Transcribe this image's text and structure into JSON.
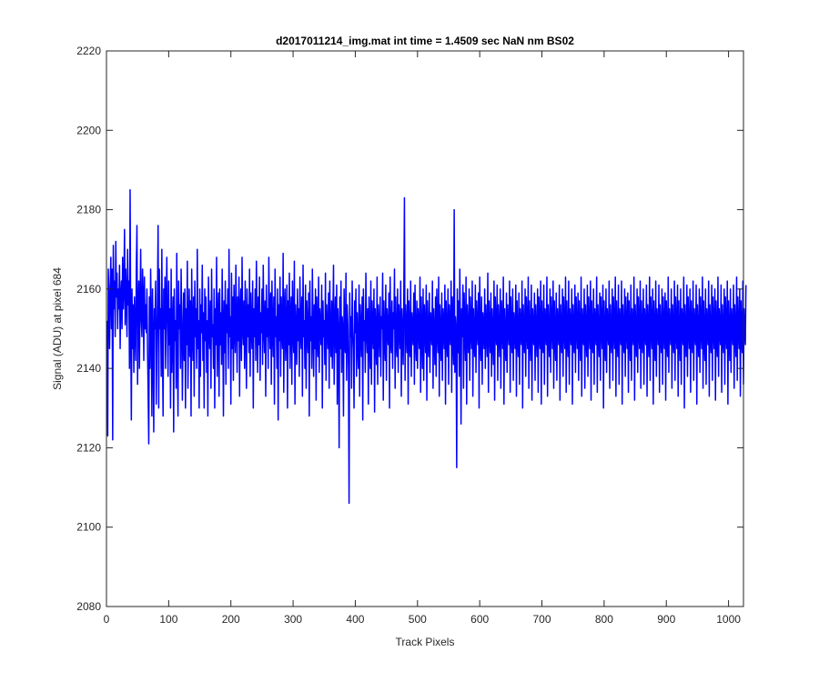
{
  "chart_data": {
    "type": "line",
    "title": "d2017011214_img.mat int time = 1.4509 sec  NaN nm BS02",
    "xlabel": "Track Pixels",
    "ylabel": "Signal (ADU) at pixel 684",
    "xlim": [
      0,
      1024
    ],
    "ylim": [
      2080,
      2220
    ],
    "xticks": [
      0,
      100,
      200,
      300,
      400,
      500,
      600,
      700,
      800,
      900,
      1000
    ],
    "yticks": [
      2080,
      2100,
      2120,
      2140,
      2160,
      2180,
      2200,
      2220
    ],
    "xticklabels": [
      "0",
      "100",
      "200",
      "300",
      "400",
      "500",
      "600",
      "700",
      "800",
      "900",
      "1000"
    ],
    "yticklabels": [
      "2080",
      "2100",
      "2120",
      "2140",
      "2160",
      "2180",
      "2200",
      "2220"
    ],
    "grid": false,
    "line_color": "#0000ff",
    "series": [
      {
        "x_start": 1,
        "x_step": 1,
        "values": [
          2152,
          2123,
          2165,
          2158,
          2145,
          2160,
          2168,
          2150,
          2165,
          2122,
          2171,
          2155,
          2162,
          2148,
          2172,
          2158,
          2164,
          2150,
          2160,
          2155,
          2166,
          2145,
          2158,
          2162,
          2150,
          2168,
          2155,
          2160,
          2175,
          2151,
          2165,
          2158,
          2148,
          2170,
          2156,
          2162,
          2140,
          2185,
          2150,
          2127,
          2160,
          2145,
          2156,
          2139,
          2158,
          2150,
          2142,
          2165,
          2176,
          2136,
          2155,
          2162,
          2140,
          2156,
          2170,
          2152,
          2148,
          2165,
          2158,
          2142,
          2163,
          2150,
          2156,
          2149,
          2160,
          2145,
          2134,
          2121,
          2158,
          2140,
          2165,
          2152,
          2128,
          2160,
          2147,
          2124,
          2155,
          2150,
          2162,
          2131,
          2145,
          2158,
          2176,
          2130,
          2165,
          2150,
          2155,
          2138,
          2170,
          2145,
          2128,
          2160,
          2150,
          2163,
          2140,
          2156,
          2168,
          2151,
          2138,
          2162,
          2146,
          2155,
          2130,
          2165,
          2139,
          2150,
          2158,
          2124,
          2160,
          2147,
          2152,
          2135,
          2169,
          2145,
          2128,
          2162,
          2150,
          2156,
          2140,
          2165,
          2153,
          2132,
          2148,
          2159,
          2142,
          2160,
          2130,
          2155,
          2146,
          2167,
          2135,
          2150,
          2160,
          2143,
          2157,
          2128,
          2165,
          2150,
          2142,
          2158,
          2133,
          2162,
          2148,
          2155,
          2140,
          2170,
          2145,
          2152,
          2130,
          2160,
          2138,
          2156,
          2149,
          2166,
          2142,
          2154,
          2130,
          2160,
          2147,
          2158,
          2139,
          2152,
          2128,
          2163,
          2150,
          2145,
          2157,
          2135,
          2165,
          2148,
          2151,
          2140,
          2160,
          2130,
          2155,
          2146,
          2168,
          2138,
          2152,
          2159,
          2133,
          2160,
          2146,
          2154,
          2141,
          2165,
          2150,
          2128,
          2157,
          2144,
          2162,
          2136,
          2156,
          2149,
          2160,
          2140,
          2170,
          2148,
          2153,
          2131,
          2164,
          2145,
          2158,
          2137,
          2161,
          2150,
          2144,
          2166,
          2152,
          2139,
          2158,
          2147,
          2163,
          2133,
          2155,
          2160,
          2142,
          2168,
          2150,
          2146,
          2157,
          2140,
          2162,
          2151,
          2135,
          2160,
          2148,
          2156,
          2144,
          2165,
          2138,
          2159,
          2150,
          2145,
          2162,
          2130,
          2155,
          2148,
          2160,
          2142,
          2167,
          2151,
          2139,
          2158,
          2146,
          2163,
          2137,
          2154,
          2149,
          2160,
          2141,
          2166,
          2150,
          2144,
          2157,
          2133,
          2161,
          2148,
          2155,
          2140,
          2168,
          2152,
          2145,
          2159,
          2136,
          2162,
          2150,
          2143,
          2158,
          2131,
          2165,
          2148,
          2153,
          2140,
          2160,
          2127,
          2156,
          2147,
          2163,
          2138,
          2158,
          2150,
          2145,
          2169,
          2134,
          2155,
          2160,
          2142,
          2150,
          2161,
          2130,
          2157,
          2146,
          2164,
          2140,
          2153,
          2158,
          2136,
          2162,
          2149,
          2144,
          2167,
          2131,
          2156,
          2150,
          2141,
          2160,
          2147,
          2155,
          2138,
          2163,
          2150,
          2145,
          2158,
          2133,
          2166,
          2148,
          2152,
          2140,
          2161,
          2135,
          2157,
          2150,
          2144,
          2159,
          2128,
          2162,
          2147,
          2153,
          2140,
          2165,
          2150,
          2138,
          2156,
          2145,
          2160,
          2132,
          2158,
          2149,
          2143,
          2163,
          2139,
          2155,
          2150,
          2146,
          2161,
          2130,
          2157,
          2148,
          2152,
          2141,
          2164,
          2137,
          2156,
          2150,
          2145,
          2159,
          2135,
          2162,
          2148,
          2143,
          2157,
          2140,
          2153,
          2166,
          2136,
          2150,
          2158,
          2144,
          2161,
          2131,
          2155,
          2149,
          2120,
          2158,
          2145,
          2162,
          2139,
          2153,
          2150,
          2128,
          2160,
          2147,
          2144,
          2164,
          2137,
          2156,
          2151,
          2140,
          2106,
          2159,
          2148,
          2153,
          2135,
          2162,
          2150,
          2145,
          2130,
          2157,
          2149,
          2160,
          2138,
          2154,
          2146,
          2140,
          2161,
          2133,
          2156,
          2150,
          2143,
          2158,
          2127,
          2160,
          2147,
          2152,
          2139,
          2164,
          2150,
          2144,
          2155,
          2131,
          2158,
          2148,
          2140,
          2162,
          2136,
          2157,
          2150,
          2145,
          2160,
          2129,
          2155,
          2149,
          2141,
          2163,
          2136,
          2156,
          2151,
          2143,
          2158,
          2138,
          2153,
          2150,
          2164,
          2132,
          2157,
          2148,
          2142,
          2161,
          2137,
          2155,
          2150,
          2146,
          2159,
          2130,
          2163,
          2148,
          2144,
          2157,
          2140,
          2154,
          2150,
          2165,
          2135,
          2158,
          2147,
          2143,
          2160,
          2139,
          2156,
          2150,
          2145,
          2162,
          2133,
          2155,
          2149,
          2141,
          2158,
          2183,
          2137,
          2156,
          2150,
          2144,
          2160,
          2131,
          2157,
          2148,
          2143,
          2162,
          2138,
          2154,
          2150,
          2146,
          2159,
          2136,
          2161,
          2147,
          2142,
          2157,
          2140,
          2155,
          2150,
          2145,
          2163,
          2134,
          2158,
          2149,
          2140,
          2160,
          2137,
          2156,
          2151,
          2144,
          2161,
          2132,
          2157,
          2148,
          2143,
          2159,
          2139,
          2154,
          2150,
          2146,
          2162,
          2135,
          2155,
          2149,
          2141,
          2158,
          2138,
          2160,
          2150,
          2144,
          2163,
          2133,
          2156,
          2148,
          2142,
          2159,
          2137,
          2155,
          2151,
          2145,
          2161,
          2131,
          2157,
          2149,
          2143,
          2160,
          2136,
          2156,
          2150,
          2146,
          2162,
          2134,
          2158,
          2148,
          2141,
          2180,
          2139,
          2153,
          2150,
          2115,
          2160,
          2144,
          2157,
          2138,
          2165,
          2150,
          2126,
          2155,
          2148,
          2161,
          2135,
          2159,
          2150,
          2142,
          2163,
          2131,
          2156,
          2149,
          2144,
          2160,
          2137,
          2158,
          2150,
          2145,
          2162,
          2133,
          2155,
          2148,
          2143,
          2161,
          2139,
          2157,
          2150,
          2146,
          2159,
          2130,
          2163,
          2148,
          2142,
          2158,
          2136,
          2154,
          2151,
          2145,
          2160,
          2140,
          2156,
          2149,
          2143,
          2164,
          2134,
          2157,
          2150,
          2144,
          2159,
          2138,
          2155,
          2148,
          2141,
          2162,
          2132,
          2158,
          2150,
          2146,
          2161,
          2137,
          2156,
          2149,
          2143,
          2160,
          2135,
          2157,
          2150,
          2145,
          2163,
          2131,
          2155,
          2148,
          2142,
          2159,
          2139,
          2156,
          2150,
          2146,
          2162,
          2134,
          2158,
          2149,
          2144,
          2160,
          2137,
          2154,
          2150,
          2145,
          2161,
          2133,
          2157,
          2148,
          2143,
          2159,
          2136,
          2155,
          2150,
          2146,
          2162,
          2130,
          2156,
          2149,
          2144,
          2160,
          2138,
          2158,
          2150,
          2145,
          2163,
          2135,
          2157,
          2148,
          2142,
          2161,
          2132,
          2155,
          2150,
          2146,
          2159,
          2137,
          2156,
          2149,
          2143,
          2160,
          2134,
          2158,
          2150,
          2145,
          2162,
          2131,
          2157,
          2148,
          2144,
          2161,
          2136,
          2155,
          2150,
          2146,
          2163,
          2133,
          2156,
          2149,
          2143,
          2160,
          2139,
          2158,
          2150,
          2145,
          2162,
          2135,
          2157,
          2148,
          2142,
          2159,
          2137,
          2155,
          2150,
          2146,
          2161,
          2132,
          2156,
          2149,
          2144,
          2160,
          2138,
          2158,
          2150,
          2145,
          2163,
          2134,
          2157,
          2148,
          2143,
          2162,
          2136,
          2155,
          2150,
          2146,
          2160,
          2131,
          2156,
          2149,
          2144,
          2161,
          2139,
          2158,
          2150,
          2145,
          2159,
          2137,
          2157,
          2148,
          2142,
          2163,
          2133,
          2155,
          2150,
          2146,
          2160,
          2135,
          2156,
          2149,
          2143,
          2161,
          2138,
          2158,
          2150,
          2145,
          2162,
          2132,
          2157,
          2148,
          2144,
          2160,
          2136,
          2155,
          2150,
          2146,
          2163,
          2134,
          2156,
          2149,
          2143,
          2159,
          2137,
          2158,
          2150,
          2145,
          2161,
          2130,
          2157,
          2148,
          2142,
          2160,
          2139,
          2155,
          2150,
          2146,
          2162,
          2135,
          2156,
          2149,
          2144,
          2160,
          2137,
          2158,
          2150,
          2145,
          2163,
          2133,
          2157,
          2148,
          2143,
          2161,
          2136,
          2155,
          2150,
          2146,
          2162,
          2131,
          2156,
          2149,
          2144,
          2160,
          2138,
          2158,
          2150,
          2145,
          2159,
          2134,
          2157,
          2148,
          2142,
          2161,
          2137,
          2155,
          2150,
          2146,
          2163,
          2132,
          2156,
          2149,
          2143,
          2160,
          2139,
          2158,
          2150,
          2145,
          2162,
          2135,
          2157,
          2148,
          2144,
          2160,
          2136,
          2155,
          2150,
          2146,
          2161,
          2133,
          2156,
          2149,
          2143,
          2163,
          2137,
          2158,
          2150,
          2145,
          2160,
          2131,
          2157,
          2148,
          2142,
          2162,
          2138,
          2155,
          2150,
          2146,
          2161,
          2134,
          2156,
          2149,
          2144,
          2160,
          2136,
          2158,
          2150,
          2145,
          2159,
          2132,
          2157,
          2148,
          2143,
          2163,
          2139,
          2155,
          2150,
          2146,
          2160,
          2135,
          2156,
          2149,
          2144,
          2162,
          2137,
          2158,
          2150,
          2145,
          2161,
          2133,
          2157,
          2148,
          2142,
          2160,
          2136,
          2155,
          2150,
          2146,
          2163,
          2130,
          2156,
          2149,
          2143,
          2161,
          2138,
          2158,
          2150,
          2145,
          2160,
          2134,
          2157,
          2148,
          2144,
          2162,
          2137,
          2155,
          2150,
          2146,
          2161,
          2131,
          2156,
          2149,
          2143,
          2160,
          2139,
          2158,
          2150,
          2145,
          2163,
          2135,
          2157,
          2148,
          2142,
          2160,
          2136,
          2155,
          2150,
          2146,
          2162,
          2133,
          2156,
          2149,
          2144,
          2161,
          2137,
          2158,
          2150,
          2145,
          2160,
          2132,
          2157,
          2148,
          2143,
          2163,
          2138,
          2155,
          2150,
          2146,
          2161,
          2134,
          2156,
          2149,
          2144,
          2160,
          2136,
          2158,
          2150,
          2145,
          2162,
          2131,
          2157,
          2148,
          2142,
          2160,
          2139,
          2155,
          2150,
          2146,
          2161,
          2135,
          2156,
          2149,
          2143,
          2163,
          2137,
          2158,
          2150,
          2145,
          2160,
          2133,
          2157,
          2148,
          2144,
          2162,
          2136,
          2155,
          2150,
          2146,
          2161
        ]
      }
    ]
  }
}
